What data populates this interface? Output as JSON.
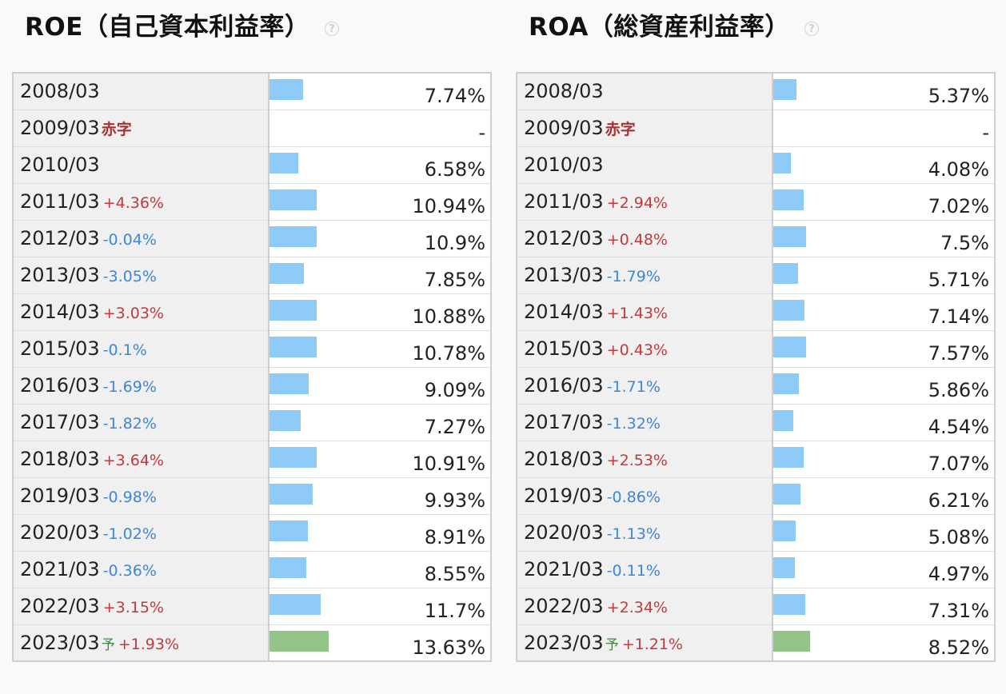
{
  "panels": [
    {
      "id": "roe",
      "title": "ROE（自己資本利益率）",
      "help_icon": "question-circle-icon",
      "scale_max": 13.63,
      "rows": [
        {
          "period": "2008/03",
          "change": "",
          "dir": "",
          "tag": "",
          "value": "7.74%",
          "amount": 7.74,
          "forecast": false
        },
        {
          "period": "2009/03",
          "change": "",
          "dir": "",
          "tag": "赤字",
          "value": "-",
          "amount": 0,
          "forecast": false
        },
        {
          "period": "2010/03",
          "change": "",
          "dir": "",
          "tag": "",
          "value": "6.58%",
          "amount": 6.58,
          "forecast": false
        },
        {
          "period": "2011/03",
          "change": "+4.36%",
          "dir": "up",
          "tag": "",
          "value": "10.94%",
          "amount": 10.94,
          "forecast": false
        },
        {
          "period": "2012/03",
          "change": "-0.04%",
          "dir": "down",
          "tag": "",
          "value": "10.9%",
          "amount": 10.9,
          "forecast": false
        },
        {
          "period": "2013/03",
          "change": "-3.05%",
          "dir": "down",
          "tag": "",
          "value": "7.85%",
          "amount": 7.85,
          "forecast": false
        },
        {
          "period": "2014/03",
          "change": "+3.03%",
          "dir": "up",
          "tag": "",
          "value": "10.88%",
          "amount": 10.88,
          "forecast": false
        },
        {
          "period": "2015/03",
          "change": "-0.1%",
          "dir": "down",
          "tag": "",
          "value": "10.78%",
          "amount": 10.78,
          "forecast": false
        },
        {
          "period": "2016/03",
          "change": "-1.69%",
          "dir": "down",
          "tag": "",
          "value": "9.09%",
          "amount": 9.09,
          "forecast": false
        },
        {
          "period": "2017/03",
          "change": "-1.82%",
          "dir": "down",
          "tag": "",
          "value": "7.27%",
          "amount": 7.27,
          "forecast": false
        },
        {
          "period": "2018/03",
          "change": "+3.64%",
          "dir": "up",
          "tag": "",
          "value": "10.91%",
          "amount": 10.91,
          "forecast": false
        },
        {
          "period": "2019/03",
          "change": "-0.98%",
          "dir": "down",
          "tag": "",
          "value": "9.93%",
          "amount": 9.93,
          "forecast": false
        },
        {
          "period": "2020/03",
          "change": "-1.02%",
          "dir": "down",
          "tag": "",
          "value": "8.91%",
          "amount": 8.91,
          "forecast": false
        },
        {
          "period": "2021/03",
          "change": "-0.36%",
          "dir": "down",
          "tag": "",
          "value": "8.55%",
          "amount": 8.55,
          "forecast": false
        },
        {
          "period": "2022/03",
          "change": "+3.15%",
          "dir": "up",
          "tag": "",
          "value": "11.7%",
          "amount": 11.7,
          "forecast": false
        },
        {
          "period": "2023/03",
          "change": "+1.93%",
          "dir": "up",
          "tag": "予",
          "value": "13.63%",
          "amount": 13.63,
          "forecast": true
        }
      ]
    },
    {
      "id": "roa",
      "title": "ROA（総資産利益率）",
      "help_icon": "question-circle-icon",
      "scale_max": 13.63,
      "rows": [
        {
          "period": "2008/03",
          "change": "",
          "dir": "",
          "tag": "",
          "value": "5.37%",
          "amount": 5.37,
          "forecast": false
        },
        {
          "period": "2009/03",
          "change": "",
          "dir": "",
          "tag": "赤字",
          "value": "-",
          "amount": 0,
          "forecast": false
        },
        {
          "period": "2010/03",
          "change": "",
          "dir": "",
          "tag": "",
          "value": "4.08%",
          "amount": 4.08,
          "forecast": false
        },
        {
          "period": "2011/03",
          "change": "+2.94%",
          "dir": "up",
          "tag": "",
          "value": "7.02%",
          "amount": 7.02,
          "forecast": false
        },
        {
          "period": "2012/03",
          "change": "+0.48%",
          "dir": "up",
          "tag": "",
          "value": "7.5%",
          "amount": 7.5,
          "forecast": false
        },
        {
          "period": "2013/03",
          "change": "-1.79%",
          "dir": "down",
          "tag": "",
          "value": "5.71%",
          "amount": 5.71,
          "forecast": false
        },
        {
          "period": "2014/03",
          "change": "+1.43%",
          "dir": "up",
          "tag": "",
          "value": "7.14%",
          "amount": 7.14,
          "forecast": false
        },
        {
          "period": "2015/03",
          "change": "+0.43%",
          "dir": "up",
          "tag": "",
          "value": "7.57%",
          "amount": 7.57,
          "forecast": false
        },
        {
          "period": "2016/03",
          "change": "-1.71%",
          "dir": "down",
          "tag": "",
          "value": "5.86%",
          "amount": 5.86,
          "forecast": false
        },
        {
          "period": "2017/03",
          "change": "-1.32%",
          "dir": "down",
          "tag": "",
          "value": "4.54%",
          "amount": 4.54,
          "forecast": false
        },
        {
          "period": "2018/03",
          "change": "+2.53%",
          "dir": "up",
          "tag": "",
          "value": "7.07%",
          "amount": 7.07,
          "forecast": false
        },
        {
          "period": "2019/03",
          "change": "-0.86%",
          "dir": "down",
          "tag": "",
          "value": "6.21%",
          "amount": 6.21,
          "forecast": false
        },
        {
          "period": "2020/03",
          "change": "-1.13%",
          "dir": "down",
          "tag": "",
          "value": "5.08%",
          "amount": 5.08,
          "forecast": false
        },
        {
          "period": "2021/03",
          "change": "-0.11%",
          "dir": "down",
          "tag": "",
          "value": "4.97%",
          "amount": 4.97,
          "forecast": false
        },
        {
          "period": "2022/03",
          "change": "+2.34%",
          "dir": "up",
          "tag": "",
          "value": "7.31%",
          "amount": 7.31,
          "forecast": false
        },
        {
          "period": "2023/03",
          "change": "+1.21%",
          "dir": "up",
          "tag": "予",
          "value": "8.52%",
          "amount": 8.52,
          "forecast": true
        }
      ]
    }
  ],
  "colors": {
    "bar_actual": "#8fcbf8",
    "bar_forecast": "#93c58a",
    "change_up": "#c0393b",
    "change_down": "#3b87d9",
    "deficit_tag": "#a63333",
    "forecast_tag": "#3d8a3d"
  }
}
